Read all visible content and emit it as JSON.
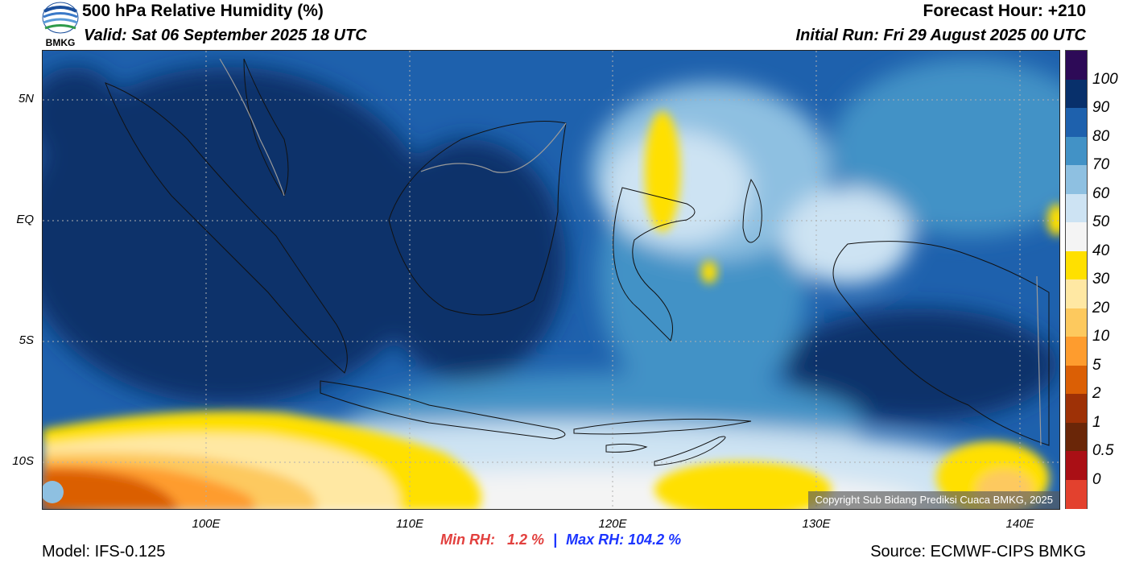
{
  "header": {
    "title": "500 hPa Relative Humidity (%)",
    "valid": "Valid: Sat 06 September 2025 18 UTC",
    "forecast_hour": "Forecast Hour: +210",
    "initial_run": "Initial Run: Fri 29 August 2025 00 UTC"
  },
  "logo": {
    "text": "BMKG"
  },
  "map": {
    "lat_labels": [
      "5N",
      "EQ",
      "5S",
      "10S"
    ],
    "lon_labels": [
      "100E",
      "110E",
      "120E",
      "130E",
      "140E"
    ],
    "copyright": "Copyright Sub Bidang Prediksi Cuaca BMKG, 2025",
    "field": "Relative Humidity at 500 hPa",
    "extent": {
      "lon": [
        92,
        142
      ],
      "lat": [
        -12,
        7
      ]
    }
  },
  "colorbar": {
    "ticks": [
      "100",
      "90",
      "80",
      "70",
      "60",
      "50",
      "40",
      "30",
      "20",
      "10",
      "5",
      "2",
      "1",
      "0.5",
      "0"
    ],
    "colors": [
      "#2d0a57",
      "#08306b",
      "#1e61ad",
      "#4292c6",
      "#8ec0e1",
      "#cde3f3",
      "#f4f4f4",
      "#ffe000",
      "#ffe8a3",
      "#fdc95e",
      "#fe9c2e",
      "#db5f05",
      "#9e3106",
      "#6a2608",
      "#aa0f15",
      "#e3412e"
    ]
  },
  "stats": {
    "min_label": "Min RH:",
    "min_value": "1.2 %",
    "separator": "|",
    "max_label": "Max RH:",
    "max_value": "104.2 %"
  },
  "footer": {
    "model": "Model: IFS-0.125",
    "source": "Source: ECMWF-CIPS BMKG"
  }
}
